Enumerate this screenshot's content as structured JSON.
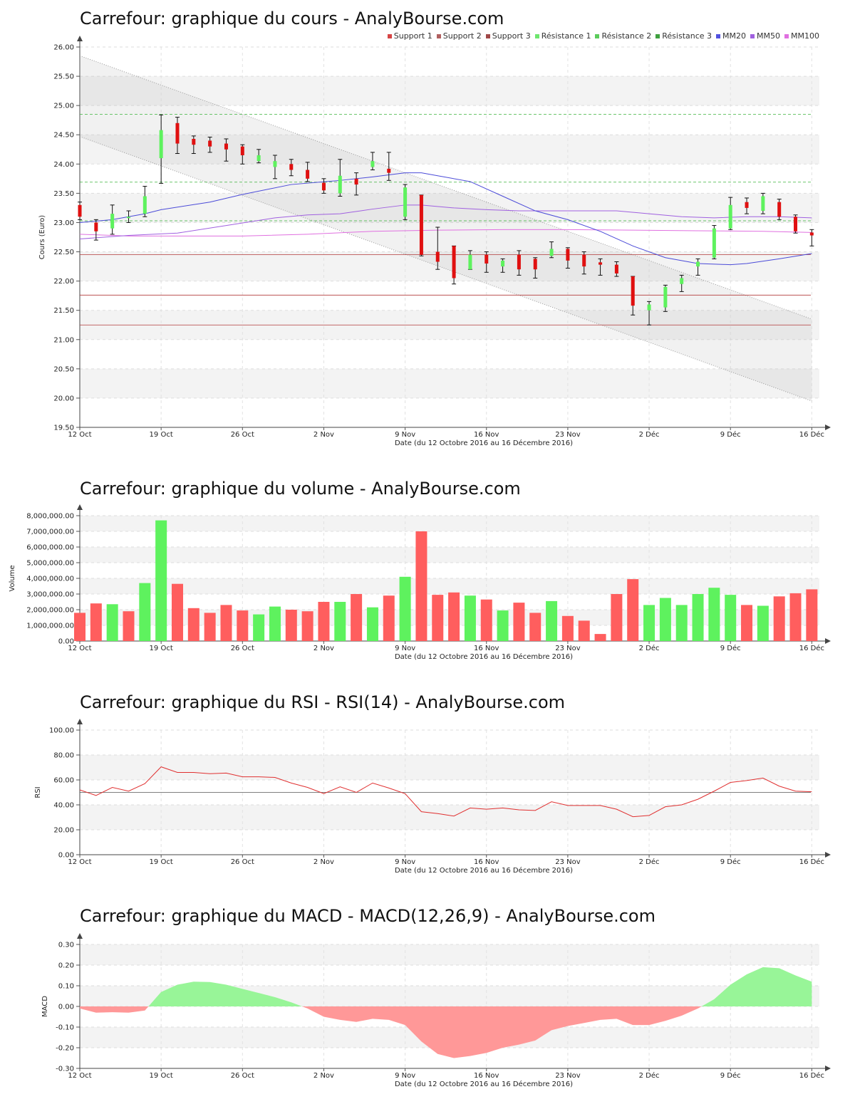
{
  "colors": {
    "up": "#5ef25e",
    "down": "#ff5e5e",
    "support": "#b23a3a",
    "resistance": "#3cb43c",
    "mm20": "#4b4bd8",
    "mm50": "#a060e0",
    "mm100": "#e070e0",
    "rsi": "#e03030",
    "macd_pos": "#98f598",
    "macd_neg": "#ff9898",
    "channel": "#aaaaaa"
  },
  "x_date_labels": [
    "12 Oct",
    "19 Oct",
    "26 Oct",
    "2 Nov",
    "9 Nov",
    "16 Nov",
    "23 Nov",
    "2 Déc",
    "9 Déc",
    "16 Déc"
  ],
  "x_axis_label": "Date (du 12 Octobre 2016 au 16 Décembre 2016)",
  "chart_data": [
    {
      "type": "candlestick",
      "title": "Carrefour: graphique du cours - AnalyBourse.com",
      "ylabel": "Cours (Euro)",
      "xlabel": "Date (du 12 Octobre 2016 au 16 Décembre 2016)",
      "ylim": [
        19.5,
        26.0
      ],
      "yticks": [
        "19.50",
        "20.00",
        "20.50",
        "21.00",
        "21.50",
        "22.00",
        "22.50",
        "23.00",
        "23.50",
        "24.00",
        "24.50",
        "25.00",
        "25.50",
        "26.00"
      ],
      "legend": [
        "Support 1",
        "Support 2",
        "Support 3",
        "Résistance 1",
        "Résistance 2",
        "Résistance 3",
        "MM20",
        "MM50",
        "MM100"
      ],
      "legend_colors": [
        "#d64545",
        "#b06060",
        "#a04848",
        "#6ee66e",
        "#5ccc5c",
        "#3fa03f",
        "#5252e0",
        "#a060e0",
        "#e070e0"
      ],
      "supports": [
        22.45,
        21.76,
        21.25
      ],
      "resistances": [
        23.03,
        23.69,
        24.85
      ],
      "channel_upper": [
        [
          0,
          25.85
        ],
        [
          45,
          21.35
        ]
      ],
      "channel_lower": [
        [
          0,
          24.47
        ],
        [
          45,
          19.95
        ]
      ],
      "candles": [
        {
          "d": 0,
          "o": 23.3,
          "h": 23.35,
          "l": 23.05,
          "c": 23.1,
          "dir": "down"
        },
        {
          "d": 1,
          "o": 23.0,
          "h": 23.05,
          "l": 22.7,
          "c": 22.85,
          "dir": "down"
        },
        {
          "d": 2,
          "o": 22.9,
          "h": 23.3,
          "l": 22.8,
          "c": 23.15,
          "dir": "up"
        },
        {
          "d": 3,
          "o": 23.1,
          "h": 23.2,
          "l": 23.0,
          "c": 23.1,
          "dir": "up"
        },
        {
          "d": 4,
          "o": 23.15,
          "h": 23.62,
          "l": 23.1,
          "c": 23.45,
          "dir": "up"
        },
        {
          "d": 5,
          "o": 24.1,
          "h": 24.84,
          "l": 23.67,
          "c": 24.58,
          "dir": "up"
        },
        {
          "d": 6,
          "o": 24.7,
          "h": 24.8,
          "l": 24.18,
          "c": 24.35,
          "dir": "down"
        },
        {
          "d": 7,
          "o": 24.43,
          "h": 24.48,
          "l": 24.18,
          "c": 24.33,
          "dir": "down"
        },
        {
          "d": 8,
          "o": 24.4,
          "h": 24.46,
          "l": 24.2,
          "c": 24.3,
          "dir": "down"
        },
        {
          "d": 9,
          "o": 24.35,
          "h": 24.43,
          "l": 24.05,
          "c": 24.25,
          "dir": "down"
        },
        {
          "d": 10,
          "o": 24.3,
          "h": 24.33,
          "l": 24.0,
          "c": 24.15,
          "dir": "down"
        },
        {
          "d": 11,
          "o": 24.05,
          "h": 24.25,
          "l": 24.02,
          "c": 24.15,
          "dir": "up"
        },
        {
          "d": 12,
          "o": 24.05,
          "h": 24.15,
          "l": 23.75,
          "c": 23.95,
          "dir": "up"
        },
        {
          "d": 13,
          "o": 24.0,
          "h": 24.08,
          "l": 23.8,
          "c": 23.9,
          "dir": "down"
        },
        {
          "d": 14,
          "o": 23.9,
          "h": 24.03,
          "l": 23.7,
          "c": 23.75,
          "dir": "down"
        },
        {
          "d": 15,
          "o": 23.68,
          "h": 23.75,
          "l": 23.5,
          "c": 23.55,
          "dir": "down"
        },
        {
          "d": 16,
          "o": 23.5,
          "h": 24.08,
          "l": 23.45,
          "c": 23.8,
          "dir": "up"
        },
        {
          "d": 17,
          "o": 23.75,
          "h": 23.85,
          "l": 23.47,
          "c": 23.65,
          "dir": "down"
        },
        {
          "d": 18,
          "o": 23.95,
          "h": 24.2,
          "l": 23.9,
          "c": 24.05,
          "dir": "up"
        },
        {
          "d": 19,
          "o": 23.92,
          "h": 24.2,
          "l": 23.72,
          "c": 23.85,
          "dir": "down"
        },
        {
          "d": 20,
          "o": 23.1,
          "h": 23.65,
          "l": 23.05,
          "c": 23.6,
          "dir": "up"
        },
        {
          "d": 21,
          "o": 23.47,
          "h": 23.47,
          "l": 22.43,
          "c": 22.45,
          "dir": "down"
        },
        {
          "d": 22,
          "o": 22.5,
          "h": 22.92,
          "l": 22.2,
          "c": 22.33,
          "dir": "down"
        },
        {
          "d": 23,
          "o": 22.6,
          "h": 22.6,
          "l": 21.95,
          "c": 22.05,
          "dir": "down"
        },
        {
          "d": 24,
          "o": 22.2,
          "h": 22.52,
          "l": 22.2,
          "c": 22.45,
          "dir": "up"
        },
        {
          "d": 25,
          "o": 22.45,
          "h": 22.5,
          "l": 22.15,
          "c": 22.3,
          "dir": "down"
        },
        {
          "d": 26,
          "o": 22.25,
          "h": 22.38,
          "l": 22.15,
          "c": 22.35,
          "dir": "up"
        },
        {
          "d": 27,
          "o": 22.45,
          "h": 22.52,
          "l": 22.1,
          "c": 22.2,
          "dir": "down"
        },
        {
          "d": 28,
          "o": 22.38,
          "h": 22.4,
          "l": 22.05,
          "c": 22.2,
          "dir": "down"
        },
        {
          "d": 29,
          "o": 22.43,
          "h": 22.67,
          "l": 22.4,
          "c": 22.55,
          "dir": "up"
        },
        {
          "d": 30,
          "o": 22.55,
          "h": 22.57,
          "l": 22.22,
          "c": 22.35,
          "dir": "down"
        },
        {
          "d": 31,
          "o": 22.45,
          "h": 22.5,
          "l": 22.12,
          "c": 22.25,
          "dir": "down"
        },
        {
          "d": 32,
          "o": 22.32,
          "h": 22.38,
          "l": 22.1,
          "c": 22.28,
          "dir": "down"
        },
        {
          "d": 33,
          "o": 22.28,
          "h": 22.33,
          "l": 22.08,
          "c": 22.13,
          "dir": "down"
        },
        {
          "d": 34,
          "o": 22.08,
          "h": 22.08,
          "l": 21.42,
          "c": 21.58,
          "dir": "down"
        },
        {
          "d": 35,
          "o": 21.5,
          "h": 21.65,
          "l": 21.25,
          "c": 21.6,
          "dir": "up"
        },
        {
          "d": 36,
          "o": 21.55,
          "h": 21.93,
          "l": 21.48,
          "c": 21.9,
          "dir": "up"
        },
        {
          "d": 37,
          "o": 21.95,
          "h": 22.1,
          "l": 21.82,
          "c": 22.05,
          "dir": "up"
        },
        {
          "d": 38,
          "o": 22.25,
          "h": 22.38,
          "l": 22.1,
          "c": 22.33,
          "dir": "up"
        },
        {
          "d": 39,
          "o": 22.4,
          "h": 22.95,
          "l": 22.38,
          "c": 22.9,
          "dir": "up"
        },
        {
          "d": 40,
          "o": 22.9,
          "h": 23.43,
          "l": 22.88,
          "c": 23.3,
          "dir": "up"
        },
        {
          "d": 41,
          "o": 23.35,
          "h": 23.42,
          "l": 23.15,
          "c": 23.25,
          "dir": "down"
        },
        {
          "d": 42,
          "o": 23.2,
          "h": 23.5,
          "l": 23.15,
          "c": 23.45,
          "dir": "up"
        },
        {
          "d": 43,
          "o": 23.35,
          "h": 23.4,
          "l": 23.05,
          "c": 23.1,
          "dir": "down"
        },
        {
          "d": 44,
          "o": 23.1,
          "h": 23.13,
          "l": 22.82,
          "c": 22.85,
          "dir": "down"
        },
        {
          "d": 45,
          "o": 22.83,
          "h": 22.88,
          "l": 22.6,
          "c": 22.78,
          "dir": "down"
        }
      ],
      "mm20": [
        [
          0,
          23.0
        ],
        [
          2,
          23.05
        ],
        [
          4,
          23.15
        ],
        [
          5,
          23.22
        ],
        [
          8,
          23.35
        ],
        [
          10,
          23.48
        ],
        [
          13,
          23.65
        ],
        [
          16,
          23.72
        ],
        [
          18,
          23.78
        ],
        [
          20,
          23.85
        ],
        [
          21,
          23.85
        ],
        [
          22,
          23.8
        ],
        [
          24,
          23.7
        ],
        [
          26,
          23.45
        ],
        [
          28,
          23.2
        ],
        [
          30,
          23.05
        ],
        [
          32,
          22.85
        ],
        [
          34,
          22.6
        ],
        [
          36,
          22.4
        ],
        [
          38,
          22.3
        ],
        [
          40,
          22.28
        ],
        [
          41,
          22.3
        ],
        [
          43,
          22.38
        ],
        [
          45,
          22.47
        ]
      ],
      "mm50": [
        [
          0,
          22.72
        ],
        [
          3,
          22.78
        ],
        [
          6,
          22.82
        ],
        [
          9,
          22.95
        ],
        [
          12,
          23.08
        ],
        [
          14,
          23.13
        ],
        [
          16,
          23.15
        ],
        [
          18,
          23.23
        ],
        [
          20,
          23.3
        ],
        [
          21,
          23.3
        ],
        [
          23,
          23.25
        ],
        [
          25,
          23.22
        ],
        [
          27,
          23.2
        ],
        [
          29,
          23.2
        ],
        [
          31,
          23.2
        ],
        [
          33,
          23.2
        ],
        [
          35,
          23.15
        ],
        [
          37,
          23.1
        ],
        [
          39,
          23.08
        ],
        [
          41,
          23.1
        ],
        [
          43,
          23.1
        ],
        [
          45,
          23.08
        ]
      ],
      "mm100": [
        [
          0,
          22.8
        ],
        [
          3,
          22.77
        ],
        [
          6,
          22.77
        ],
        [
          10,
          22.77
        ],
        [
          14,
          22.8
        ],
        [
          18,
          22.85
        ],
        [
          22,
          22.87
        ],
        [
          26,
          22.88
        ],
        [
          30,
          22.88
        ],
        [
          34,
          22.87
        ],
        [
          38,
          22.86
        ],
        [
          42,
          22.85
        ],
        [
          45,
          22.83
        ]
      ]
    },
    {
      "type": "bar",
      "title": "Carrefour: graphique du volume - AnalyBourse.com",
      "ylabel": "Volume",
      "xlabel": "Date (du 12 Octobre 2016 au 16 Décembre 2016)",
      "ylim": [
        0,
        8000000
      ],
      "yticks": [
        "0.00",
        "1,000,000.00",
        "2,000,000.00",
        "3,000,000.00",
        "4,000,000.00",
        "5,000,000.00",
        "6,000,000.00",
        "7,000,000.00",
        "8,000,000.00"
      ],
      "values": [
        1800000,
        2400000,
        2350000,
        1900000,
        3700000,
        7700000,
        3650000,
        2100000,
        1800000,
        2300000,
        1950000,
        1700000,
        2200000,
        2000000,
        1900000,
        2500000,
        2500000,
        3000000,
        2150000,
        2900000,
        4100000,
        7000000,
        2950000,
        3100000,
        2900000,
        2650000,
        1950000,
        2450000,
        1800000,
        2550000,
        1600000,
        1300000,
        450000,
        3000000,
        3950000,
        2300000,
        2750000,
        2300000,
        3000000,
        3400000,
        2950000,
        2300000,
        2250000,
        2850000,
        3050000,
        3300000
      ],
      "dirs": [
        "down",
        "down",
        "up",
        "down",
        "up",
        "up",
        "down",
        "down",
        "down",
        "down",
        "down",
        "up",
        "up",
        "down",
        "down",
        "down",
        "up",
        "down",
        "up",
        "down",
        "up",
        "down",
        "down",
        "down",
        "up",
        "down",
        "up",
        "down",
        "down",
        "up",
        "down",
        "down",
        "down",
        "down",
        "down",
        "up",
        "up",
        "up",
        "up",
        "up",
        "up",
        "down",
        "up",
        "down",
        "down",
        "down"
      ]
    },
    {
      "type": "line",
      "title": "Carrefour: graphique du RSI - RSI(14) - AnalyBourse.com",
      "ylabel": "RSI",
      "xlabel": "Date (du 12 Octobre 2016 au 16 Décembre 2016)",
      "ylim": [
        0,
        100
      ],
      "yticks": [
        "0.00",
        "20.00",
        "40.00",
        "60.00",
        "80.00",
        "100.00"
      ],
      "reference": 50,
      "values": [
        52,
        47.5,
        54,
        51,
        57,
        70.5,
        66,
        66,
        65,
        65.5,
        62.5,
        62.5,
        62,
        57.5,
        54,
        49,
        54.5,
        50,
        57.5,
        53.5,
        49,
        34.5,
        33,
        31,
        37.5,
        36.5,
        37.5,
        36,
        35.5,
        42.5,
        39.5,
        39.5,
        39.5,
        36.5,
        30.5,
        31.5,
        38.5,
        40,
        44.5,
        51,
        58,
        59.5,
        61.5,
        55,
        51,
        50.5
      ]
    },
    {
      "type": "area",
      "title": "Carrefour: graphique du MACD - MACD(12,26,9) - AnalyBourse.com",
      "ylabel": "MACD",
      "xlabel": "Date (du 12 Octobre 2016 au 16 Décembre 2016)",
      "ylim": [
        -0.3,
        0.3
      ],
      "yticks": [
        "-0.30",
        "-0.20",
        "-0.10",
        "0.00",
        "0.10",
        "0.20",
        "0.30"
      ],
      "values": [
        -0.01,
        -0.03,
        -0.028,
        -0.03,
        -0.02,
        0.07,
        0.105,
        0.12,
        0.118,
        0.105,
        0.085,
        0.065,
        0.045,
        0.02,
        -0.01,
        -0.05,
        -0.065,
        -0.075,
        -0.06,
        -0.065,
        -0.09,
        -0.17,
        -0.23,
        -0.25,
        -0.24,
        -0.225,
        -0.2,
        -0.185,
        -0.165,
        -0.115,
        -0.095,
        -0.08,
        -0.065,
        -0.06,
        -0.09,
        -0.09,
        -0.07,
        -0.045,
        -0.01,
        0.035,
        0.105,
        0.155,
        0.19,
        0.185,
        0.15,
        0.12
      ]
    }
  ]
}
